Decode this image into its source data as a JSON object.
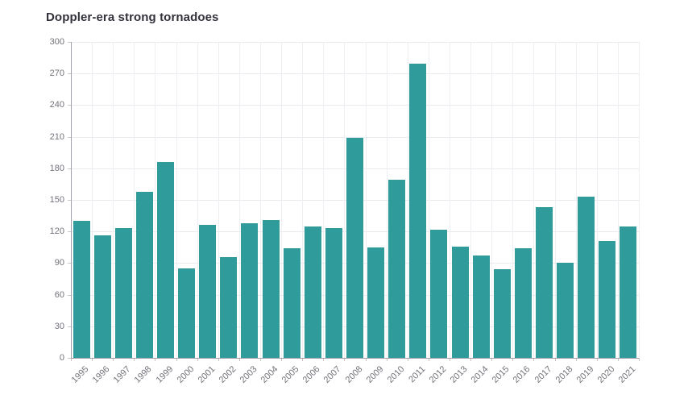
{
  "page": {
    "title": "Doppler-era strong tornadoes"
  },
  "chart_data": {
    "type": "bar",
    "title": "Doppler-era strong tornadoes",
    "categories": [
      "1995",
      "1996",
      "1997",
      "1998",
      "1999",
      "2000",
      "2001",
      "2002",
      "2003",
      "2004",
      "2005",
      "2006",
      "2007",
      "2008",
      "2009",
      "2010",
      "2011",
      "2012",
      "2013",
      "2014",
      "2015",
      "2016",
      "2017",
      "2018",
      "2019",
      "2020",
      "2021"
    ],
    "values": [
      130,
      116,
      123,
      158,
      186,
      85,
      126,
      96,
      128,
      131,
      104,
      125,
      123,
      209,
      105,
      169,
      279,
      122,
      106,
      97,
      84,
      104,
      143,
      90,
      153,
      111,
      125
    ],
    "xlabel": "",
    "ylabel": "",
    "ylim": [
      0,
      300
    ],
    "yticks": [
      0,
      30,
      60,
      90,
      120,
      150,
      180,
      210,
      240,
      270,
      300
    ],
    "grid": true,
    "legend": "none",
    "bar_color": "#2f9c9b"
  }
}
